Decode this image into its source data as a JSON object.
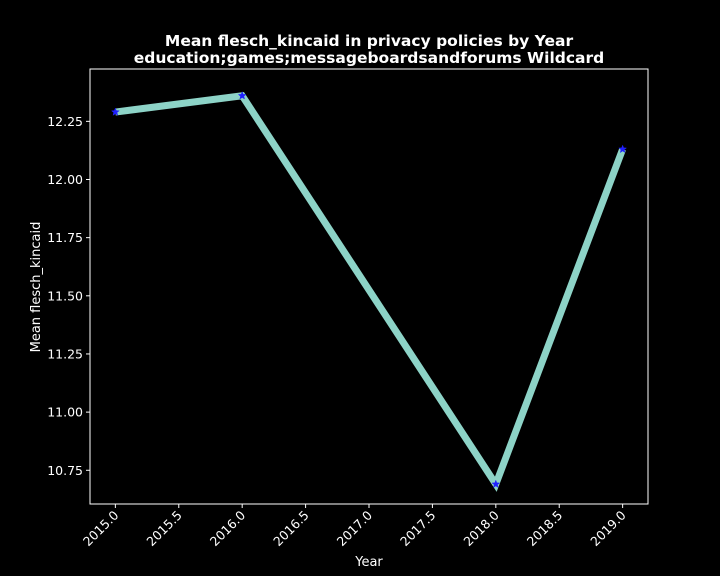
{
  "chart_data": {
    "type": "line",
    "title": "Mean flesch_kincaid in privacy policies by Year",
    "subtitle": "education;games;messageboardsandforums Wildcard",
    "xlabel": "Year",
    "ylabel": "Mean flesch_kincaid",
    "x": [
      2015,
      2016,
      2018,
      2019
    ],
    "series": [
      {
        "values": [
          12.29,
          12.36,
          10.69,
          12.13
        ]
      }
    ],
    "xlim": [
      2014.8,
      2019.2
    ],
    "ylim": [
      10.605,
      12.475
    ],
    "xticks": [
      "2015.0",
      "2015.5",
      "2016.0",
      "2016.5",
      "2017.0",
      "2017.5",
      "2018.0",
      "2018.5",
      "2019.0"
    ],
    "yticks": [
      "10.75",
      "11.00",
      "11.25",
      "11.50",
      "11.75",
      "12.00",
      "12.25"
    ],
    "grid": false,
    "background_color": "#000000",
    "line_color": "#8dd3c7",
    "marker_color": "#1f1fff",
    "marker": "star"
  }
}
